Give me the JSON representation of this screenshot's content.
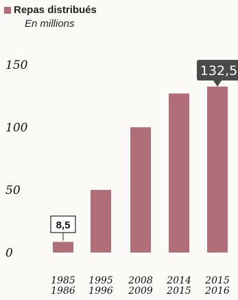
{
  "legend": {
    "label": "Repas distribués",
    "color": "#b06e78"
  },
  "subtitle": "En millions",
  "chart_data": {
    "type": "bar",
    "title": "Repas distribués",
    "subtitle": "En millions",
    "categories": [
      [
        "1985",
        "1986"
      ],
      [
        "1995",
        "1996"
      ],
      [
        "2008",
        "2009"
      ],
      [
        "2014",
        "2015"
      ],
      [
        "2015",
        "2016"
      ]
    ],
    "values": [
      8.5,
      50,
      100,
      127,
      132.5
    ],
    "yticks": [
      0,
      50,
      100,
      150
    ],
    "ylim": [
      0,
      150
    ],
    "bar_color": "#b06e78",
    "annotations": [
      {
        "index": 0,
        "text": "8,5",
        "style": "boxed"
      },
      {
        "index": 4,
        "text": "132,5",
        "style": "dark-callout"
      }
    ],
    "grid": false
  }
}
